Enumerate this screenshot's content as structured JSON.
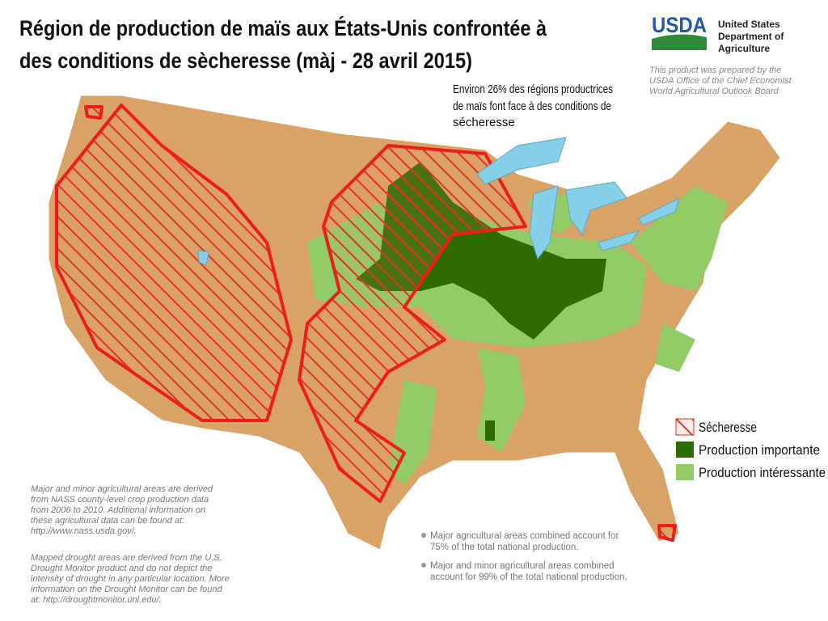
{
  "header": {
    "title_lines": [
      "Région de production de maïs aux États-Unis confrontée à",
      "des conditions de sècheresse (màj - 28 avril 2015)"
    ]
  },
  "logo": {
    "mark": "USDA",
    "name_lines": [
      "United States",
      "Department of",
      "Agriculture"
    ],
    "credit_lines": [
      "This product was prepared by the",
      "USDA Office of the Chief Economist",
      "World Agricultural Outlook Board"
    ]
  },
  "annotation": {
    "lines": [
      "Environ 26% des régions productrices",
      "de maïs font face à des conditions de",
      "sécheresse"
    ]
  },
  "legend": {
    "items": [
      "Sécheresse",
      "Production importante",
      "Production intéressante"
    ]
  },
  "notes": {
    "paragraph_1": [
      "Major and minor agricultural areas are derived",
      "from NASS county-level crop production data",
      "from 2006 to 2010.  Additional information on",
      "these agricultural data can be found at:",
      "http://www.nass.usda.gov/."
    ],
    "paragraph_2": [
      "Mapped drought areas are derived from the U.S.",
      "Drought Monitor product and do not depict the",
      "intensity of drought in any particular location.  More",
      "information on the Drought Monitor can be found",
      "at:  http://droughtmonitor.unl.edu/."
    ]
  },
  "bullets": {
    "item_1": [
      "Major agricultural areas combined account for",
      "75% of the total national production."
    ],
    "item_2": [
      "Major and minor agricultural areas combined",
      "account for 99% of the total national production."
    ]
  }
}
